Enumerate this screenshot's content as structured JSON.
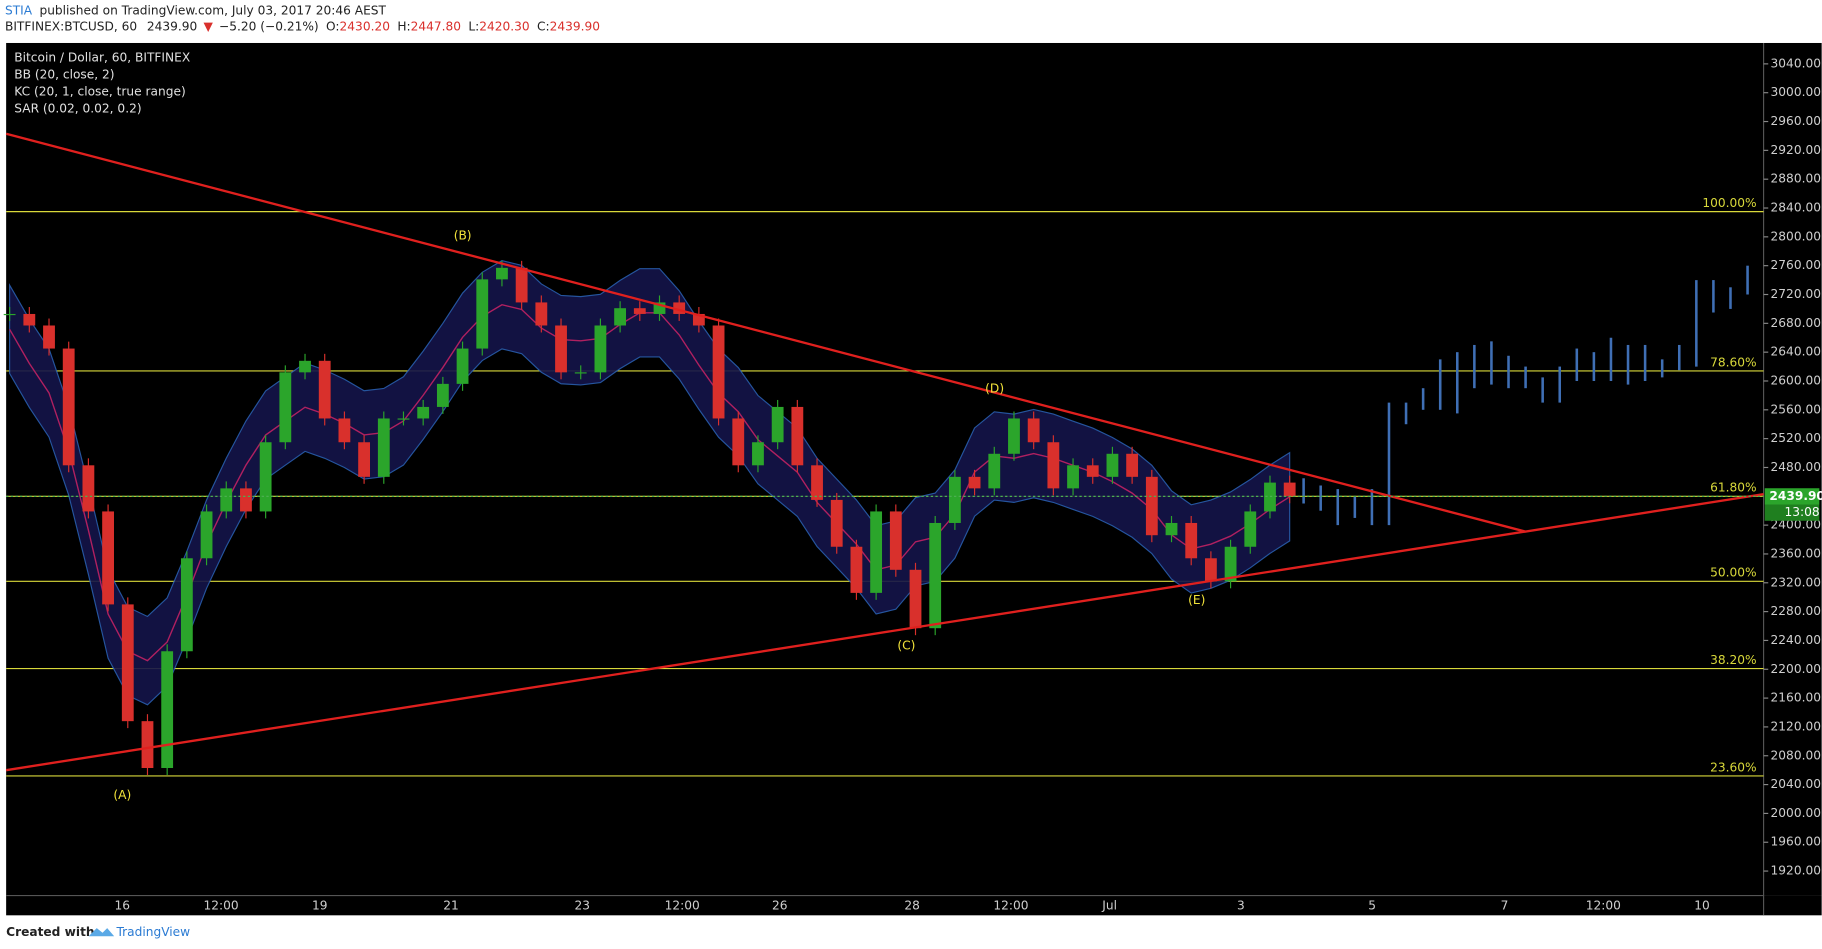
{
  "chart_data": {
    "type": "candlestick",
    "header": {
      "user": "STIA",
      "published": "published on TradingView.com, July 03, 2017 20:46 AEST",
      "symbol": "BITFINEX:BTCUSD, 60",
      "price": "2439.90",
      "arrow": "▼",
      "change": "−5.20 (−0.21%)",
      "ohlc": [
        [
          "O:",
          "2430.20"
        ],
        [
          "H:",
          "2447.80"
        ],
        [
          "L:",
          "2420.30"
        ],
        [
          "C:",
          "2439.90"
        ]
      ]
    },
    "legend": [
      "Bitcoin / Dollar, 60, BITFINEX",
      "BB (20, close, 2)",
      "KC (20, 1, close, true range)",
      "SAR (0.02, 0.02, 0.2)"
    ],
    "colors": {
      "up": "#2ba52b",
      "down": "#d9302c",
      "projection": "#3f6fb5",
      "fib": "#d8d83a",
      "trend": "#e0201e"
    },
    "closes": [
      2693,
      2677,
      2645,
      2483,
      2419,
      2290,
      2128,
      2063,
      2225,
      2354,
      2419,
      2451,
      2419,
      2515,
      2612,
      2628,
      2548,
      2515,
      2467,
      2548,
      2548,
      2564,
      2596,
      2645,
      2741,
      2757,
      2709,
      2677,
      2612,
      2612,
      2677,
      2701,
      2693,
      2709,
      2693,
      2677,
      2548,
      2483,
      2515,
      2564,
      2483,
      2435,
      2370,
      2306,
      2419,
      2338,
      2257,
      2403,
      2467,
      2451,
      2499,
      2548,
      2515,
      2451,
      2483,
      2467,
      2499,
      2467,
      2386,
      2403,
      2354,
      2322,
      2370,
      2419,
      2459,
      2440
    ],
    "projection": [
      [
        2430,
        2465
      ],
      [
        2420,
        2455
      ],
      [
        2400,
        2450
      ],
      [
        2410,
        2440
      ],
      [
        2400,
        2450
      ],
      [
        2400,
        2570
      ],
      [
        2540,
        2570
      ],
      [
        2560,
        2590
      ],
      [
        2560,
        2630
      ],
      [
        2555,
        2640
      ],
      [
        2590,
        2650
      ],
      [
        2595,
        2655
      ],
      [
        2590,
        2635
      ],
      [
        2590,
        2620
      ],
      [
        2570,
        2605
      ],
      [
        2570,
        2620
      ],
      [
        2600,
        2645
      ],
      [
        2600,
        2640
      ],
      [
        2600,
        2660
      ],
      [
        2595,
        2650
      ],
      [
        2600,
        2650
      ],
      [
        2605,
        2630
      ],
      [
        2615,
        2650
      ],
      [
        2620,
        2740
      ],
      [
        2695,
        2740
      ],
      [
        2700,
        2730
      ],
      [
        2720,
        2760
      ]
    ],
    "ylim": [
      1886,
      3069
    ],
    "yticks": [
      {
        "value": 3040,
        "label": "3040.00"
      },
      {
        "value": 3000,
        "label": "3000.00"
      },
      {
        "value": 2960,
        "label": "2960.00"
      },
      {
        "value": 2920,
        "label": "2920.00"
      },
      {
        "value": 2880,
        "label": "2880.00"
      },
      {
        "value": 2840,
        "label": "2840.00"
      },
      {
        "value": 2800,
        "label": "2800.00"
      },
      {
        "value": 2760,
        "label": "2760.00"
      },
      {
        "value": 2720,
        "label": "2720.00"
      },
      {
        "value": 2680,
        "label": "2680.00"
      },
      {
        "value": 2640,
        "label": "2640.00"
      },
      {
        "value": 2600,
        "label": "2600.00"
      },
      {
        "value": 2560,
        "label": "2560.00"
      },
      {
        "value": 2520,
        "label": "2520.00"
      },
      {
        "value": 2480,
        "label": "2480.00"
      },
      {
        "value": 2400,
        "label": "2400.00"
      },
      {
        "value": 2360,
        "label": "2360.00"
      },
      {
        "value": 2320,
        "label": "2320.00"
      },
      {
        "value": 2280,
        "label": "2280.00"
      },
      {
        "value": 2240,
        "label": "2240.00"
      },
      {
        "value": 2200,
        "label": "2200.00"
      },
      {
        "value": 2160,
        "label": "2160.00"
      },
      {
        "value": 2120,
        "label": "2120.00"
      },
      {
        "value": 2080,
        "label": "2080.00"
      },
      {
        "value": 2040,
        "label": "2040.00"
      },
      {
        "value": 2000,
        "label": "2000.00"
      },
      {
        "value": 1960,
        "label": "1960.00"
      },
      {
        "value": 1920,
        "label": "1920.00"
      }
    ],
    "xticks": [
      "16",
      "12:00",
      "19",
      "21",
      "23",
      "12:00",
      "26",
      "28",
      "12:00",
      "Jul",
      "3",
      "5",
      "7",
      "12:00",
      "10"
    ],
    "fib_levels": [
      {
        "value": 2835,
        "label": "100.00%"
      },
      {
        "value": 2614,
        "label": "78.60%"
      },
      {
        "value": 2440,
        "label": "61.80%"
      },
      {
        "value": 2322,
        "label": "50.00%"
      },
      {
        "value": 2201,
        "label": "38.20%"
      },
      {
        "value": 2052,
        "label": "23.60%"
      }
    ],
    "trendlines": [
      [
        2943,
        2391
      ],
      [
        2060,
        2443
      ]
    ],
    "wave_labels": [
      "(A)",
      "(B)",
      "(C)",
      "(D)",
      "(E)"
    ],
    "last_price": {
      "value": 2439.9,
      "label": "2439.90"
    },
    "countdown": "13:08",
    "footer": {
      "created": "Created with",
      "brand": "TradingView"
    }
  }
}
